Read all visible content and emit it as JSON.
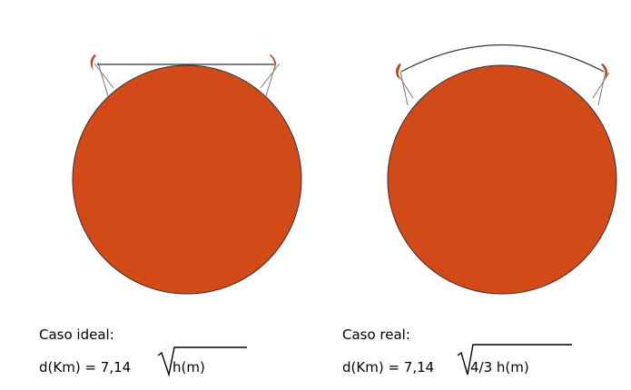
{
  "colors": {
    "earth": "#d24a17",
    "antenna": "#b8461f",
    "line": "#333333",
    "beam": "#777777"
  },
  "panels": [
    {
      "id": "ideal",
      "caption": "Caso ideal:",
      "formula": "d(Km) = 7,14",
      "radicand": "h(m)",
      "path": "straight"
    },
    {
      "id": "real",
      "caption": "Caso real:",
      "formula": "d(Km) = 7,14",
      "radicand": "4/3 h(m)",
      "path": "curved"
    }
  ],
  "icons": [
    "earth-circle",
    "antenna-dish-icon",
    "line-of-sight-path",
    "radical-sign"
  ]
}
